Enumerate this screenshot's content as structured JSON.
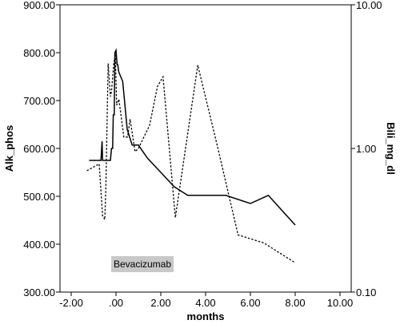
{
  "chart_data": {
    "type": "line",
    "xlabel": "months",
    "ylabel_left": "Alk_phos",
    "ylabel_right": "Bili_mg_dl",
    "xlim": [
      -2.5,
      10.5
    ],
    "ylim_left": [
      300,
      900
    ],
    "ylim_right": [
      0.1,
      10
    ],
    "right_axis_scale": "log",
    "grid": false,
    "x_ticks": [
      -2,
      0,
      2,
      4,
      6,
      8,
      10
    ],
    "x_tick_labels": [
      "-2.00",
      ".00",
      "2.00",
      "4.00",
      "6.00",
      "8.00",
      "10.00"
    ],
    "y_left_ticks": [
      300,
      400,
      500,
      600,
      700,
      800,
      900
    ],
    "y_left_tick_labels": [
      "300.00",
      "400.00",
      "500.00",
      "600.00",
      "700.00",
      "800.00",
      "900.00"
    ],
    "y_right_ticks": [
      0.1,
      1,
      10
    ],
    "y_right_tick_labels": [
      "0.10",
      "1.00",
      "10.00"
    ],
    "annotation": "Bevacizumab",
    "series": [
      {
        "axis": "left",
        "style": "solid",
        "x": [
          -1.2,
          -0.67,
          -0.62,
          -0.6,
          -0.55,
          -0.5,
          -0.45,
          -0.25,
          -0.2,
          -0.15,
          -0.12,
          -0.08,
          -0.05,
          0.0,
          0.05,
          0.08,
          0.12,
          0.3,
          0.5,
          0.72,
          1.0,
          1.4,
          2.0,
          2.6,
          3.2,
          4.0,
          4.9,
          6.0,
          6.8,
          8.0
        ],
        "y": [
          575,
          575,
          615,
          575,
          575,
          575,
          575,
          575,
          600,
          600,
          670,
          670,
          800,
          805,
          775,
          775,
          760,
          740,
          640,
          607,
          607,
          580,
          550,
          520,
          502,
          502,
          502,
          485,
          502,
          440
        ]
      },
      {
        "axis": "right",
        "style": "dotted",
        "x": [
          -1.3,
          -0.75,
          -0.6,
          -0.5,
          -0.45,
          -0.35,
          -0.25,
          -0.2,
          -0.1,
          -0.03,
          0.03,
          0.13,
          0.35,
          0.52,
          0.63,
          0.85,
          1.0,
          1.5,
          1.85,
          2.1,
          2.65,
          3.65,
          4.55,
          5.45,
          6.6,
          8.0
        ],
        "y": [
          0.7,
          0.78,
          0.34,
          0.32,
          0.56,
          3.9,
          2.3,
          2.5,
          3.9,
          4.5,
          2.0,
          2.2,
          1.2,
          1.2,
          1.6,
          0.95,
          1.0,
          1.45,
          2.7,
          3.15,
          0.33,
          3.8,
          1.0,
          0.25,
          0.22,
          0.16
        ]
      }
    ]
  }
}
